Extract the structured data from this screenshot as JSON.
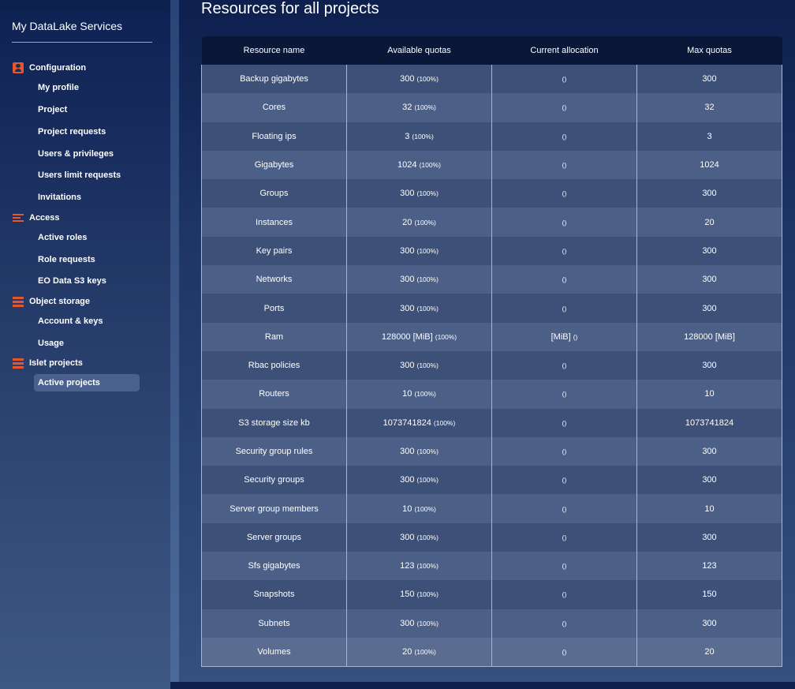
{
  "sidebar": {
    "app_title": "My DataLake Services",
    "sections": [
      {
        "label": "Configuration",
        "icon": "person-badge-icon",
        "items": [
          "My profile",
          "Project",
          "Project requests",
          "Users & privileges",
          "Users limit requests",
          "Invitations"
        ]
      },
      {
        "label": "Access",
        "icon": "list-icon",
        "items": [
          "Active roles",
          "Role requests",
          "EO Data S3 keys"
        ]
      },
      {
        "label": "Object storage",
        "icon": "storage-icon",
        "items": [
          "Account & keys",
          "Usage"
        ]
      },
      {
        "label": "Islet projects",
        "icon": "storage-icon",
        "items": [
          "Active projects"
        ]
      }
    ],
    "active_item": "Active projects",
    "icon_color": "#e8552b"
  },
  "main": {
    "title": "Resources for all projects",
    "table": {
      "headers": [
        "Resource name",
        "Available quotas",
        "Current allocation",
        "Max quotas"
      ],
      "rows": [
        {
          "name": "Backup gigabytes",
          "available": "300",
          "available_pct": "(100%)",
          "current": "",
          "current_pct": "()",
          "max": "300"
        },
        {
          "name": "Cores",
          "available": "32",
          "available_pct": "(100%)",
          "current": "",
          "current_pct": "()",
          "max": "32"
        },
        {
          "name": "Floating ips",
          "available": "3",
          "available_pct": "(100%)",
          "current": "",
          "current_pct": "()",
          "max": "3"
        },
        {
          "name": "Gigabytes",
          "available": "1024",
          "available_pct": "(100%)",
          "current": "",
          "current_pct": "()",
          "max": "1024"
        },
        {
          "name": "Groups",
          "available": "300",
          "available_pct": "(100%)",
          "current": "",
          "current_pct": "()",
          "max": "300"
        },
        {
          "name": "Instances",
          "available": "20",
          "available_pct": "(100%)",
          "current": "",
          "current_pct": "()",
          "max": "20"
        },
        {
          "name": "Key pairs",
          "available": "300",
          "available_pct": "(100%)",
          "current": "",
          "current_pct": "()",
          "max": "300"
        },
        {
          "name": "Networks",
          "available": "300",
          "available_pct": "(100%)",
          "current": "",
          "current_pct": "()",
          "max": "300"
        },
        {
          "name": "Ports",
          "available": "300",
          "available_pct": "(100%)",
          "current": "",
          "current_pct": "()",
          "max": "300"
        },
        {
          "name": "Ram",
          "available": "128000 [MiB]",
          "available_pct": "(100%)",
          "current": "[MiB]",
          "current_pct": "()",
          "max": "128000 [MiB]"
        },
        {
          "name": "Rbac policies",
          "available": "300",
          "available_pct": "(100%)",
          "current": "",
          "current_pct": "()",
          "max": "300"
        },
        {
          "name": "Routers",
          "available": "10",
          "available_pct": "(100%)",
          "current": "",
          "current_pct": "()",
          "max": "10"
        },
        {
          "name": "S3 storage size kb",
          "available": "1073741824",
          "available_pct": "(100%)",
          "current": "",
          "current_pct": "()",
          "max": "1073741824"
        },
        {
          "name": "Security group rules",
          "available": "300",
          "available_pct": "(100%)",
          "current": "",
          "current_pct": "()",
          "max": "300"
        },
        {
          "name": "Security groups",
          "available": "300",
          "available_pct": "(100%)",
          "current": "",
          "current_pct": "()",
          "max": "300"
        },
        {
          "name": "Server group members",
          "available": "10",
          "available_pct": "(100%)",
          "current": "",
          "current_pct": "()",
          "max": "10"
        },
        {
          "name": "Server groups",
          "available": "300",
          "available_pct": "(100%)",
          "current": "",
          "current_pct": "()",
          "max": "300"
        },
        {
          "name": "Sfs gigabytes",
          "available": "123",
          "available_pct": "(100%)",
          "current": "",
          "current_pct": "()",
          "max": "123"
        },
        {
          "name": "Snapshots",
          "available": "150",
          "available_pct": "(100%)",
          "current": "",
          "current_pct": "()",
          "max": "150"
        },
        {
          "name": "Subnets",
          "available": "300",
          "available_pct": "(100%)",
          "current": "",
          "current_pct": "()",
          "max": "300"
        },
        {
          "name": "Volumes",
          "available": "20",
          "available_pct": "(100%)",
          "current": "",
          "current_pct": "()",
          "max": "20"
        }
      ]
    }
  }
}
